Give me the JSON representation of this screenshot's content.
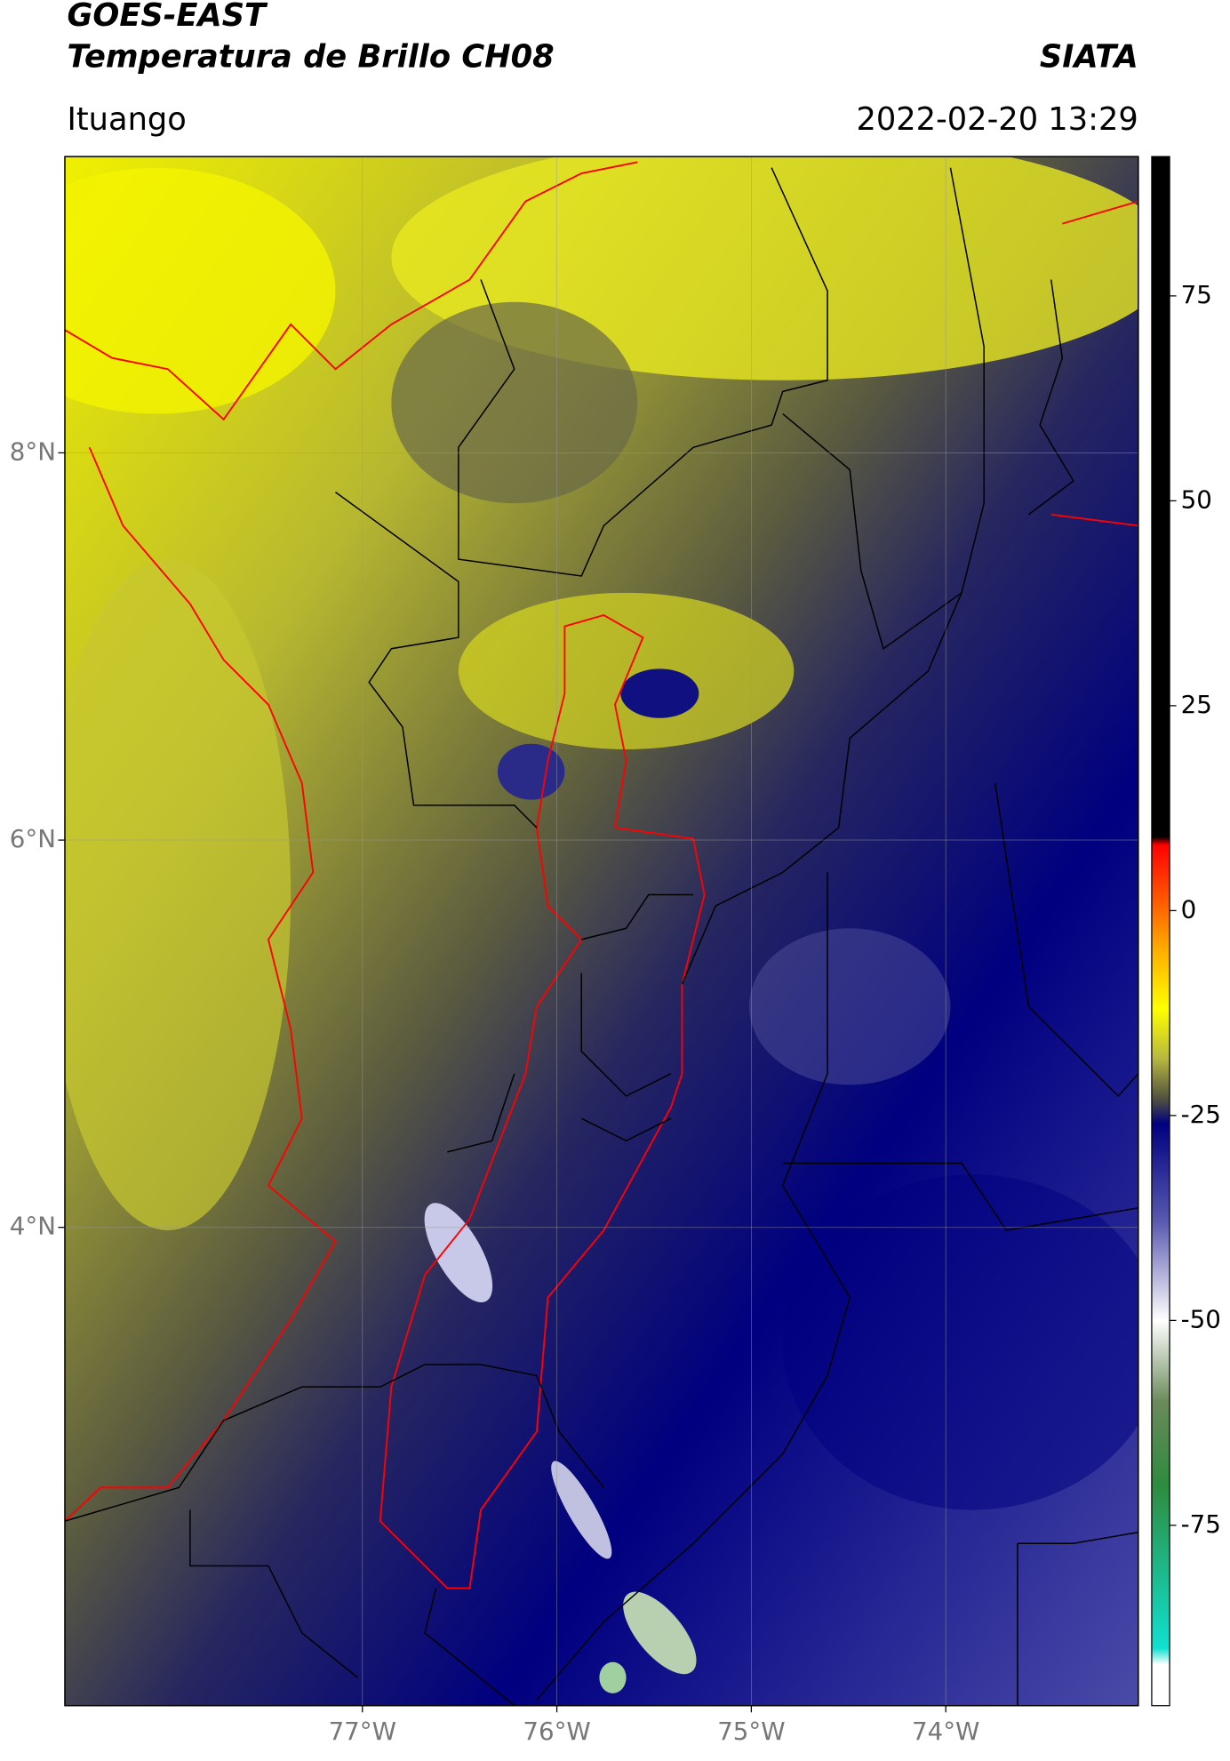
{
  "header": {
    "title": "GOES-EAST",
    "subtitle": "Temperatura de Brillo CH08",
    "source": "SIATA",
    "location": "Ituango",
    "datetime": "2022-02-20 13:29"
  },
  "map": {
    "lat_lim": [
      1.53,
      9.53
    ],
    "lon_lim": [
      -78.53,
      -73.01
    ],
    "lat_ticks": [
      {
        "value": 8,
        "label": "8°N"
      },
      {
        "value": 6,
        "label": "6°N"
      },
      {
        "value": 4,
        "label": "4°N"
      }
    ],
    "lon_ticks": [
      {
        "value": -77,
        "label": "77°W"
      },
      {
        "value": -76,
        "label": "76°W"
      },
      {
        "value": -75,
        "label": "75°W"
      },
      {
        "value": -74,
        "label": "74°W"
      }
    ],
    "grid": true
  },
  "colorbar": {
    "lim": [
      -97,
      92
    ],
    "ticks": [
      75,
      50,
      25,
      0,
      -25,
      -50,
      -75
    ],
    "stops": [
      {
        "value": 92,
        "color": "#000000"
      },
      {
        "value": 9,
        "color": "#000000"
      },
      {
        "value": 8,
        "color": "#ff0000"
      },
      {
        "value": 0,
        "color": "#ff6a00"
      },
      {
        "value": -5,
        "color": "#ffb000"
      },
      {
        "value": -12,
        "color": "#ffff00"
      },
      {
        "value": -18,
        "color": "#b8b840"
      },
      {
        "value": -23,
        "color": "#505040"
      },
      {
        "value": -26,
        "color": "#000080"
      },
      {
        "value": -38,
        "color": "#5a5ab0"
      },
      {
        "value": -50,
        "color": "#ffffff"
      },
      {
        "value": -60,
        "color": "#6a8a5a"
      },
      {
        "value": -70,
        "color": "#2e8b3e"
      },
      {
        "value": -90,
        "color": "#10e0d0"
      },
      {
        "value": -92,
        "color": "#ffffff"
      },
      {
        "value": -97,
        "color": "#ffffff"
      }
    ]
  }
}
